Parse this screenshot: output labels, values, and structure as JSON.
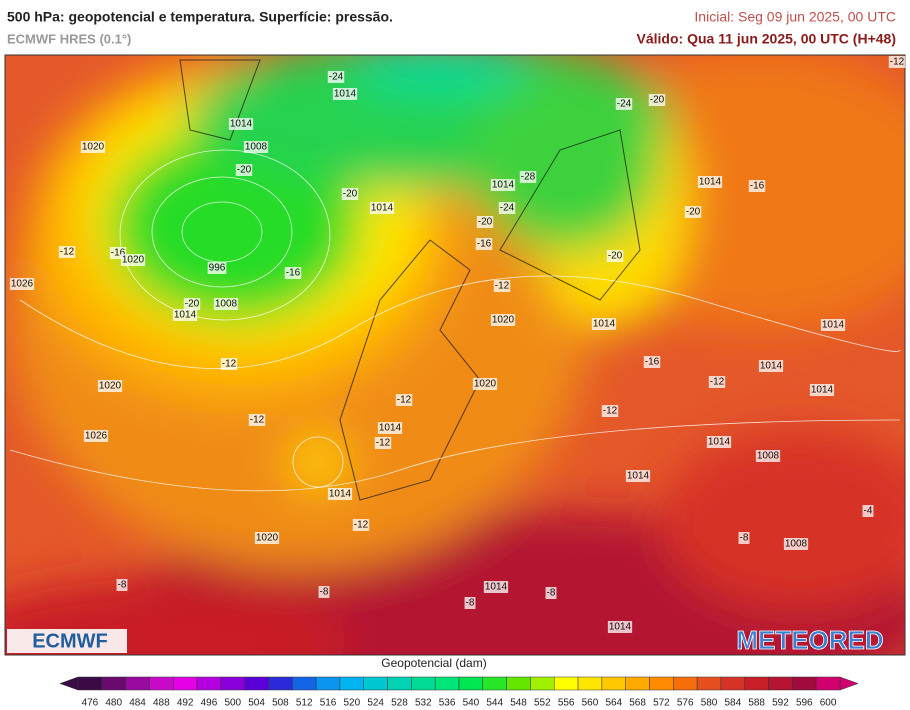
{
  "header": {
    "title": "500 hPa: geopotencial e temperatura. Superfície: pressão.",
    "model": "ECMWF HRES (0.1°)",
    "initial": "Inicial: Seg 09 jun 2025, 00 UTC",
    "valid": "Válido: Qua 11 jun 2025, 00 UTC (H+48)"
  },
  "map_labels": [
    "-24",
    "1014",
    "1014",
    "1008",
    "1020",
    "-20",
    "1014",
    "-28",
    "1014",
    "-16",
    "-20",
    "1014",
    "-20",
    "-24",
    "-20",
    "-16",
    "-12",
    "-16",
    "1020",
    "996",
    "-16",
    "-20",
    "-12",
    "1026",
    "-20",
    "1008",
    "1014",
    "1020",
    "1014",
    "1014",
    "-12",
    "-16",
    "1014",
    "1020",
    "1020",
    "-12",
    "1014",
    "-12",
    "-12",
    "-12",
    "1014",
    "-12",
    "1026",
    "1014",
    "1008",
    "1014",
    "1014",
    "-4",
    "-12",
    "1020",
    "-8",
    "1008",
    "-8",
    "-8",
    "1014",
    "-8",
    "-8",
    "1014",
    "-12",
    "-20",
    "-24"
  ],
  "colorbar": {
    "title": "Geopotencial (dam)",
    "ticks": [
      476,
      480,
      484,
      488,
      492,
      496,
      500,
      504,
      508,
      512,
      516,
      520,
      524,
      528,
      532,
      536,
      540,
      544,
      548,
      552,
      556,
      560,
      564,
      568,
      572,
      576,
      580,
      584,
      588,
      592,
      596,
      600
    ],
    "colors": [
      "#3b0a45",
      "#6a0a6e",
      "#9a0aa0",
      "#c80ac8",
      "#e600e6",
      "#b400e0",
      "#8a00dc",
      "#5a00d8",
      "#2a2ad8",
      "#1464e6",
      "#0a96f0",
      "#00b4f0",
      "#00c8d2",
      "#00d2b4",
      "#00dc96",
      "#00e678",
      "#00e650",
      "#28e628",
      "#64e600",
      "#a0f000",
      "#ffff00",
      "#ffe600",
      "#ffc800",
      "#ffaa00",
      "#ff8c00",
      "#f56e0a",
      "#e6501e",
      "#d73228",
      "#c81e28",
      "#b41432",
      "#a00a3c",
      "#d2006e"
    ]
  },
  "logos": {
    "left": "ECMWF",
    "right": "METEORED"
  }
}
